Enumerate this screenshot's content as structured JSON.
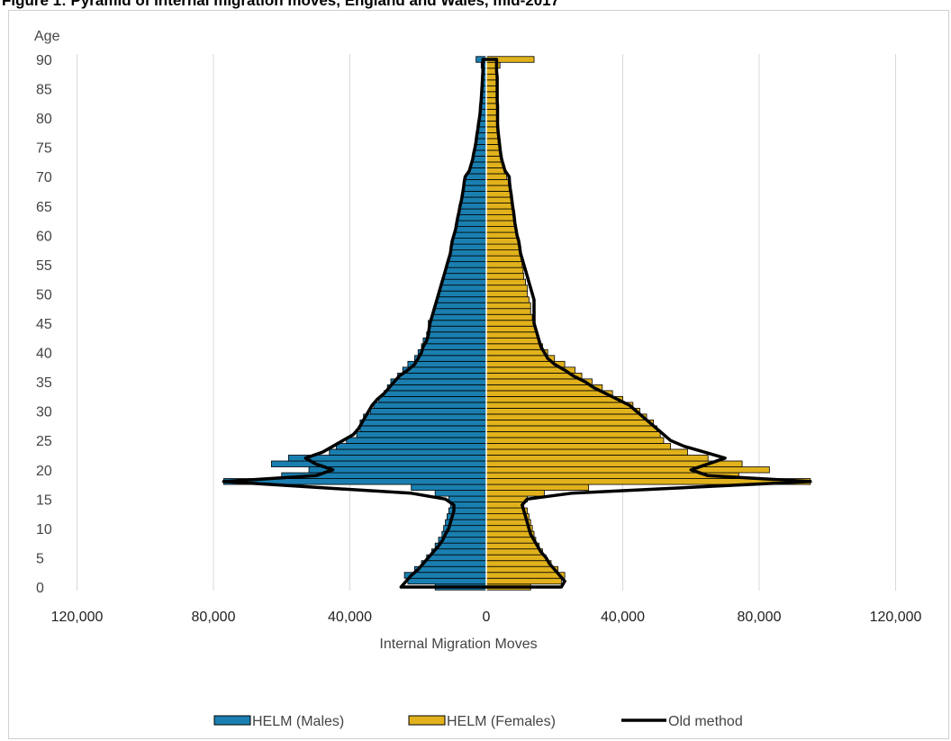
{
  "figure": {
    "title": "Figure 1: Pyramid of internal migration moves, England and Wales, mid-2017"
  },
  "chart_data": {
    "type": "bar",
    "orientation": "horizontal-pyramid",
    "title": "Figure 1: Pyramid of internal migration moves, England and Wales, mid-2017",
    "ylabel": "Age",
    "xlabel": "Internal Migration Moves",
    "xlim": [
      -120000,
      120000
    ],
    "ylim": [
      0,
      90
    ],
    "x_ticks": [
      "120,000",
      "80,000",
      "40,000",
      "0",
      "40,000",
      "80,000",
      "120,000"
    ],
    "x_tick_values": [
      -120000,
      -80000,
      -40000,
      0,
      40000,
      80000,
      120000
    ],
    "y_ticks": [
      "0",
      "5",
      "10",
      "15",
      "20",
      "25",
      "30",
      "35",
      "40",
      "45",
      "50",
      "55",
      "60",
      "65",
      "70",
      "75",
      "80",
      "85",
      "90"
    ],
    "y_tick_values": [
      0,
      5,
      10,
      15,
      20,
      25,
      30,
      35,
      40,
      45,
      50,
      55,
      60,
      65,
      70,
      75,
      80,
      85,
      90
    ],
    "grid": "vertical",
    "legend_position": "bottom",
    "ages": [
      0,
      1,
      2,
      3,
      4,
      5,
      6,
      7,
      8,
      9,
      10,
      11,
      12,
      13,
      14,
      15,
      16,
      17,
      18,
      19,
      20,
      21,
      22,
      23,
      24,
      25,
      26,
      27,
      28,
      29,
      30,
      31,
      32,
      33,
      34,
      35,
      36,
      37,
      38,
      39,
      40,
      41,
      42,
      43,
      44,
      45,
      46,
      47,
      48,
      49,
      50,
      51,
      52,
      53,
      54,
      55,
      56,
      57,
      58,
      59,
      60,
      61,
      62,
      63,
      64,
      65,
      66,
      67,
      68,
      69,
      70,
      71,
      72,
      73,
      74,
      75,
      76,
      77,
      78,
      79,
      80,
      81,
      82,
      83,
      84,
      85,
      86,
      87,
      88,
      89,
      90
    ],
    "series": [
      {
        "name": "HELM (Males)",
        "color": "#1a7fb0",
        "values": [
          15000,
          23000,
          24000,
          21000,
          19000,
          17500,
          16000,
          15000,
          14000,
          13000,
          12500,
          12000,
          11500,
          11000,
          10500,
          11000,
          15000,
          22000,
          77000,
          60000,
          52000,
          63000,
          58000,
          46000,
          44000,
          41000,
          38000,
          37000,
          37000,
          36000,
          34000,
          33000,
          31500,
          30000,
          29000,
          28000,
          26000,
          24500,
          23000,
          21000,
          20000,
          19000,
          18500,
          17500,
          17000,
          17000,
          16000,
          15500,
          15000,
          14500,
          14000,
          13500,
          13000,
          12500,
          12000,
          11500,
          11000,
          10500,
          10200,
          10000,
          9500,
          9000,
          8700,
          8400,
          8000,
          7700,
          7300,
          7000,
          6700,
          6500,
          6000,
          5000,
          4500,
          4000,
          3700,
          3300,
          3000,
          2800,
          2500,
          2300,
          2000,
          1800,
          1700,
          1500,
          1400,
          1300,
          1200,
          1100,
          1000,
          1500,
          3000
        ]
      },
      {
        "name": "HELM (Females)",
        "color": "#e1b21c",
        "values": [
          13000,
          22000,
          23000,
          21000,
          19000,
          17500,
          16500,
          15500,
          14500,
          14000,
          13500,
          13000,
          12500,
          12000,
          11000,
          12000,
          17000,
          30000,
          95000,
          74000,
          83000,
          75000,
          65000,
          59000,
          54000,
          52000,
          51000,
          50000,
          49000,
          47000,
          45000,
          43000,
          40000,
          37000,
          34000,
          31000,
          28000,
          26000,
          23000,
          20000,
          18000,
          16500,
          15500,
          15000,
          14500,
          14000,
          13500,
          13000,
          13000,
          12500,
          12000,
          12000,
          11500,
          11000,
          10800,
          10500,
          10200,
          10000,
          9700,
          9500,
          9000,
          8700,
          8400,
          8200,
          8000,
          7700,
          7300,
          7000,
          6800,
          6500,
          6000,
          5300,
          4800,
          4300,
          4000,
          3800,
          3500,
          3300,
          3200,
          3200,
          3100,
          3100,
          3100,
          3000,
          3000,
          3100,
          3200,
          3200,
          3300,
          4000,
          14000
        ]
      }
    ],
    "old_method": {
      "name": "Old method",
      "color": "#000000",
      "males": [
        25000,
        23500,
        22000,
        20000,
        18500,
        17000,
        15500,
        14000,
        12800,
        12000,
        11000,
        10500,
        10000,
        9500,
        9500,
        12000,
        22000,
        50000,
        77000,
        50000,
        45000,
        50000,
        53000,
        48000,
        45000,
        42000,
        39000,
        37500,
        36500,
        35500,
        34500,
        33500,
        32000,
        30000,
        28500,
        27000,
        25500,
        23000,
        21000,
        20000,
        19000,
        18500,
        17500,
        17000,
        16800,
        16500,
        16000,
        15500,
        15000,
        14500,
        14000,
        13500,
        13000,
        12500,
        12000,
        11500,
        11000,
        10500,
        10300,
        10000,
        9500,
        9000,
        8700,
        8400,
        8000,
        7700,
        7300,
        7000,
        6700,
        6500,
        6200,
        5000,
        4500,
        4000,
        3700,
        3300,
        3000,
        2800,
        2500,
        2300,
        2000,
        1800,
        1700,
        1500,
        1400,
        1300,
        1200,
        1100,
        1000,
        1000,
        1000
      ],
      "females": [
        22000,
        23000,
        21500,
        20000,
        18500,
        17500,
        16000,
        15000,
        14000,
        13000,
        12500,
        12000,
        11500,
        11000,
        10500,
        12000,
        25000,
        60000,
        95000,
        65000,
        60000,
        65000,
        70000,
        64000,
        58000,
        54000,
        52000,
        50000,
        48000,
        46000,
        44000,
        42000,
        38500,
        35000,
        31500,
        29000,
        25500,
        23000,
        20000,
        18000,
        17000,
        16000,
        15500,
        15000,
        14500,
        14000,
        14000,
        14000,
        14000,
        14000,
        13500,
        13000,
        12500,
        12000,
        11500,
        11000,
        10500,
        10000,
        9800,
        9500,
        9000,
        8700,
        8400,
        8200,
        8000,
        7700,
        7500,
        7300,
        7000,
        6800,
        6700,
        5500,
        5000,
        4500,
        4200,
        4000,
        3800,
        3600,
        3400,
        3300,
        3300,
        3300,
        3300,
        3200,
        3200,
        3200,
        3200,
        3200,
        3000,
        3000,
        3000
      ]
    }
  },
  "legend": {
    "items": [
      {
        "label": "HELM (Males)",
        "color": "#1a7fb0"
      },
      {
        "label": "HELM (Females)",
        "color": "#e1b21c"
      },
      {
        "label": "Old method",
        "color": "#000000"
      }
    ]
  }
}
